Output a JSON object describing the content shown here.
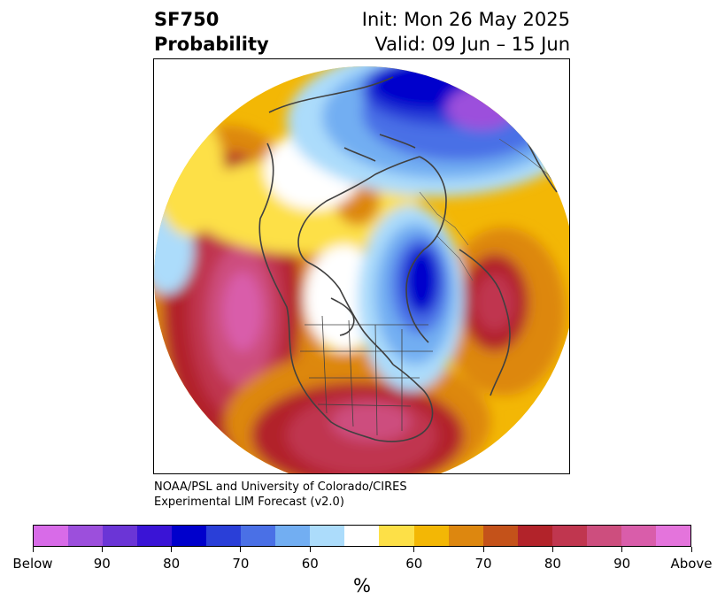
{
  "title": {
    "variable": "SF750",
    "subtitle": "Probability",
    "init": "Init: Mon 26 May 2025",
    "valid": "Valid: 09 Jun – 15 Jun"
  },
  "credit": {
    "line1": "NOAA/PSL and University of Colorado/CIRES",
    "line2": "Experimental LIM Forecast (v2.0)"
  },
  "colorbar": {
    "colors": [
      "#d86be8",
      "#9c4fdc",
      "#6b35d6",
      "#3a14d6",
      "#0000cc",
      "#2a3fd8",
      "#4a70e6",
      "#72aef2",
      "#acdcfb",
      "#ffffff",
      "#fde047",
      "#f3b705",
      "#dd870f",
      "#c4521a",
      "#b2232a",
      "#c0364f",
      "#cd4e7e",
      "#d95daa",
      "#e474dc"
    ],
    "labels": [
      "Below",
      "90",
      "80",
      "70",
      "60",
      "60",
      "70",
      "80",
      "90",
      "Above"
    ],
    "unit": "%"
  },
  "map": {
    "projection": "north-polar stereographic",
    "features": [
      "coastlines",
      "country borders",
      "US state borders"
    ],
    "below_normal_regions": [
      "Siberia / Arctic",
      "Greenland / Baffin Bay",
      "eastern Pacific edge"
    ],
    "above_normal_regions": [
      "North Pacific",
      "United States",
      "North Atlantic",
      "central Canada"
    ]
  }
}
